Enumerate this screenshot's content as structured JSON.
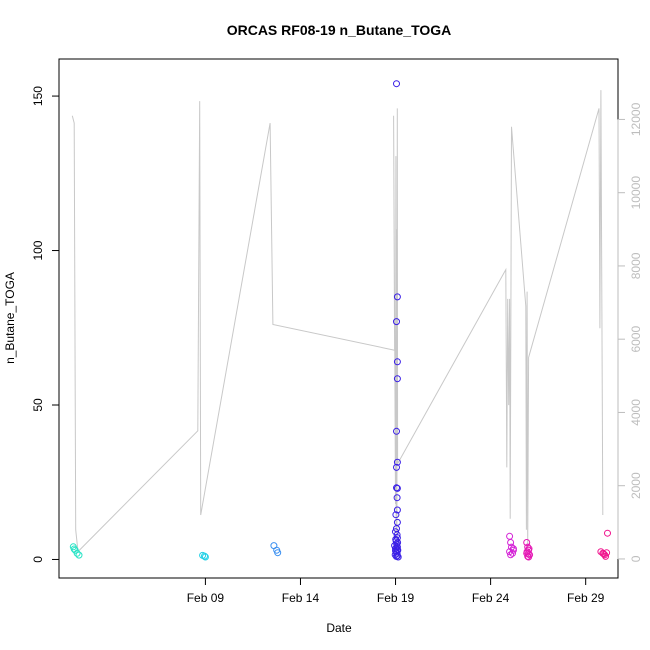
{
  "chart_data": {
    "type": "scatter",
    "title": "ORCAS RF08-19 n_Butane_TOGA",
    "xlabel": "Date",
    "ylabel": "n_Butane_TOGA",
    "x_ticks": [
      "Feb 09",
      "Feb 14",
      "Feb 19",
      "Feb 24",
      "Feb 29"
    ],
    "x_tick_days": [
      9,
      14,
      19,
      24,
      29
    ],
    "xlim_days": [
      1.3,
      30.7
    ],
    "ylim": [
      -6,
      162
    ],
    "y_ticks": [
      0,
      50,
      100,
      150
    ],
    "y2_ticks": [
      0,
      2000,
      4000,
      6000,
      8000,
      10000,
      12000
    ],
    "y2lim": [
      -520,
      13650
    ],
    "background_line_color": "#c8c8c8",
    "right_axis_color": "#bdbdbd",
    "series": [
      {
        "color": "#27e3c5",
        "points": [
          [
            2.05,
            4.1
          ],
          [
            2.15,
            3.0
          ],
          [
            2.25,
            2.0
          ],
          [
            2.35,
            1.4
          ],
          [
            2.1,
            3.4
          ]
        ]
      },
      {
        "color": "#22d0e6",
        "points": [
          [
            8.85,
            1.3
          ],
          [
            9.0,
            0.8
          ],
          [
            8.95,
            1.1
          ]
        ]
      },
      {
        "color": "#3a8ff0",
        "points": [
          [
            12.6,
            4.5
          ],
          [
            12.75,
            3.0
          ],
          [
            12.8,
            2.2
          ]
        ]
      },
      {
        "color": "#3a1fe6",
        "points": [
          [
            19.05,
            154.0
          ],
          [
            19.1,
            85.0
          ],
          [
            19.05,
            77.0
          ],
          [
            19.1,
            64.0
          ],
          [
            19.1,
            58.5
          ],
          [
            19.05,
            41.5
          ],
          [
            19.1,
            31.5
          ],
          [
            19.05,
            29.8
          ],
          [
            19.1,
            23.0
          ],
          [
            19.05,
            23.2
          ],
          [
            19.08,
            20.0
          ],
          [
            19.1,
            16.0
          ],
          [
            19.02,
            14.5
          ],
          [
            19.1,
            12.0
          ],
          [
            19.05,
            10.0
          ],
          [
            19.0,
            9.0
          ],
          [
            19.08,
            8.0
          ],
          [
            19.1,
            7.0
          ],
          [
            19.03,
            6.0
          ],
          [
            19.06,
            5.0
          ],
          [
            18.95,
            4.5
          ],
          [
            19.1,
            4.0
          ],
          [
            19.0,
            3.5
          ],
          [
            19.12,
            3.0
          ],
          [
            19.02,
            2.5
          ],
          [
            19.08,
            2.0
          ],
          [
            18.98,
            1.5
          ],
          [
            19.1,
            1.2
          ],
          [
            19.04,
            1.0
          ],
          [
            19.14,
            0.8
          ],
          [
            19.0,
            2.8
          ],
          [
            19.07,
            4.2
          ],
          [
            19.11,
            5.5
          ],
          [
            19.01,
            6.5
          ],
          [
            19.09,
            3.2
          ]
        ]
      },
      {
        "color": "#d422d6",
        "points": [
          [
            25.0,
            7.5
          ],
          [
            25.05,
            5.5
          ],
          [
            25.1,
            4.0
          ],
          [
            25.2,
            3.0
          ],
          [
            25.0,
            2.5
          ],
          [
            25.15,
            2.0
          ],
          [
            25.05,
            1.5
          ],
          [
            25.2,
            3.5
          ]
        ]
      },
      {
        "color": "#e51ab5",
        "points": [
          [
            25.9,
            5.5
          ],
          [
            25.95,
            4.0
          ],
          [
            26.0,
            3.0
          ],
          [
            25.9,
            2.0
          ],
          [
            26.05,
            1.5
          ],
          [
            25.95,
            1.0
          ],
          [
            26.0,
            0.8
          ],
          [
            25.92,
            2.5
          ],
          [
            26.02,
            3.5
          ],
          [
            25.98,
            1.8
          ]
        ]
      },
      {
        "color": "#f0148e",
        "points": [
          [
            29.8,
            2.5
          ],
          [
            29.9,
            2.0
          ],
          [
            30.0,
            1.5
          ],
          [
            30.1,
            2.2
          ],
          [
            30.15,
            8.5
          ],
          [
            30.05,
            1.0
          ],
          [
            29.95,
            1.8
          ]
        ]
      }
    ],
    "background_line": {
      "axis": "right",
      "points": [
        [
          2.0,
          12100
        ],
        [
          2.1,
          11900
        ],
        [
          2.18,
          800
        ],
        [
          2.3,
          200
        ],
        [
          8.6,
          3500
        ],
        [
          8.7,
          12500
        ],
        [
          8.75,
          1200
        ],
        [
          12.4,
          11900
        ],
        [
          12.55,
          6400
        ],
        [
          18.95,
          5700
        ],
        [
          18.9,
          12100
        ],
        [
          19.0,
          1500
        ],
        [
          19.02,
          11000
        ],
        [
          19.03,
          700
        ],
        [
          19.05,
          9000
        ],
        [
          19.07,
          400
        ],
        [
          19.09,
          12300
        ],
        [
          19.11,
          2600
        ],
        [
          24.8,
          7900
        ],
        [
          24.85,
          2500
        ],
        [
          24.9,
          7100
        ],
        [
          24.95,
          4200
        ],
        [
          25.0,
          7100
        ],
        [
          25.03,
          1100
        ],
        [
          25.1,
          11800
        ],
        [
          25.85,
          6900
        ],
        [
          25.88,
          800
        ],
        [
          25.92,
          7300
        ],
        [
          25.95,
          300
        ],
        [
          26.0,
          5500
        ],
        [
          29.7,
          12300
        ],
        [
          29.75,
          6300
        ],
        [
          29.8,
          12800
        ],
        [
          29.9,
          1200
        ]
      ]
    }
  }
}
